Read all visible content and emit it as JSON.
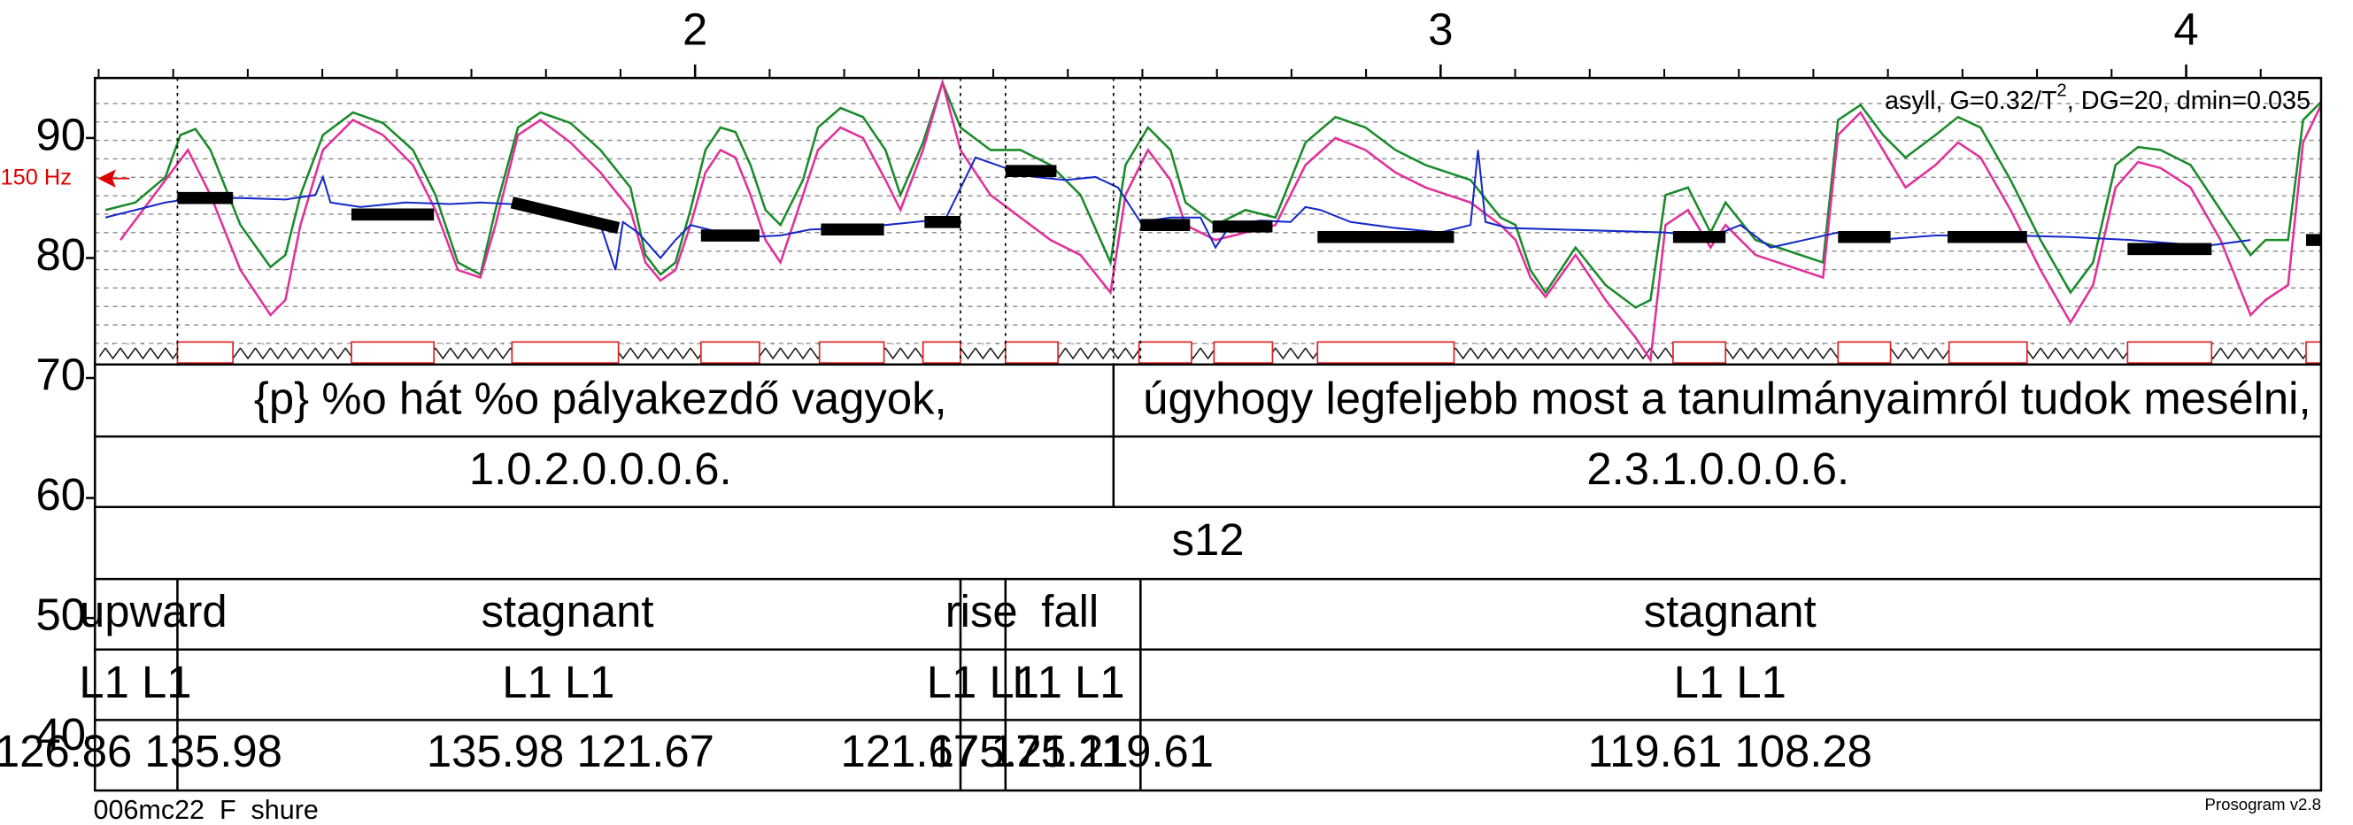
{
  "axis": {
    "ylim": [
      40,
      95
    ],
    "yticks": [
      40,
      50,
      60,
      70,
      80,
      90
    ],
    "xlim": [
      1.195,
      4.181
    ],
    "xticks": [
      2,
      3,
      4
    ],
    "ref_label": "150 Hz"
  },
  "annotation": {
    "main": "asyll, G=0.32/T",
    "sup": "2",
    "rest": ", DG=20, dmin=0.035"
  },
  "tiers": {
    "syllables": [
      "{p} %o hát %o pályakezdő vagyok,",
      "úgyhogy legfeljebb most a tanulmányaimról tudok mesélni,"
    ],
    "codes": [
      "1.0.2.0.0.0.6.",
      "2.3.1.0.0.0.6."
    ],
    "speaker": [
      "s12"
    ],
    "trends": [
      "upward",
      "stagnant",
      "rise",
      "fall",
      "stagnant"
    ],
    "levels": [
      "L1 L1",
      "L1 L1",
      "L1 L1",
      "L1 L1",
      "L1 L1"
    ],
    "pitch": [
      "126.86 135.98",
      "135.98 121.67",
      "121.67 175.21",
      "175.21 119.61",
      "119.61 108.28"
    ]
  },
  "footer": {
    "left": "006mc22  F  shure",
    "right": "Prosogram v2.8"
  }
}
